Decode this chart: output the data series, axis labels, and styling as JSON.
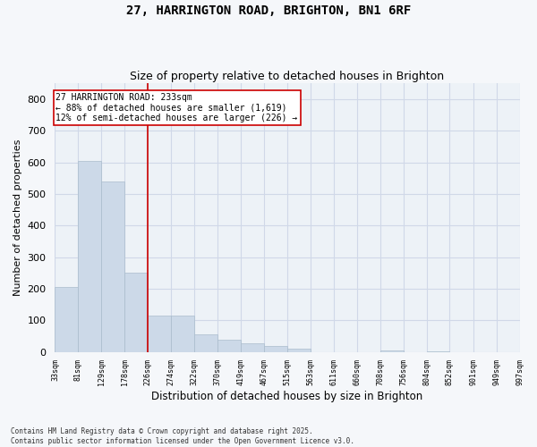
{
  "title": "27, HARRINGTON ROAD, BRIGHTON, BN1 6RF",
  "subtitle": "Size of property relative to detached houses in Brighton",
  "xlabel": "Distribution of detached houses by size in Brighton",
  "ylabel": "Number of detached properties",
  "bar_color": "#ccd9e8",
  "bar_edge_color": "#aabccc",
  "grid_color": "#d0d8e8",
  "bg_color": "#edf2f7",
  "annotation_line_color": "#cc0000",
  "annotation_box_color": "#cc0000",
  "annotation_text": "27 HARRINGTON ROAD: 233sqm\n← 88% of detached houses are smaller (1,619)\n12% of semi-detached houses are larger (226) →",
  "bins": [
    33,
    81,
    129,
    178,
    226,
    274,
    322,
    370,
    419,
    467,
    515,
    563,
    611,
    660,
    708,
    756,
    804,
    852,
    901,
    949,
    997
  ],
  "bin_labels": [
    "33sqm",
    "81sqm",
    "129sqm",
    "178sqm",
    "226sqm",
    "274sqm",
    "322sqm",
    "370sqm",
    "419sqm",
    "467sqm",
    "515sqm",
    "563sqm",
    "611sqm",
    "660sqm",
    "708sqm",
    "756sqm",
    "804sqm",
    "852sqm",
    "901sqm",
    "949sqm",
    "997sqm"
  ],
  "values": [
    205,
    605,
    540,
    250,
    115,
    115,
    55,
    40,
    28,
    20,
    10,
    0,
    0,
    0,
    5,
    0,
    3,
    0,
    0,
    0
  ],
  "red_line_bin_index": 4,
  "ylim": [
    0,
    850
  ],
  "yticks": [
    0,
    100,
    200,
    300,
    400,
    500,
    600,
    700,
    800
  ],
  "footnote": "Contains HM Land Registry data © Crown copyright and database right 2025.\nContains public sector information licensed under the Open Government Licence v3.0."
}
